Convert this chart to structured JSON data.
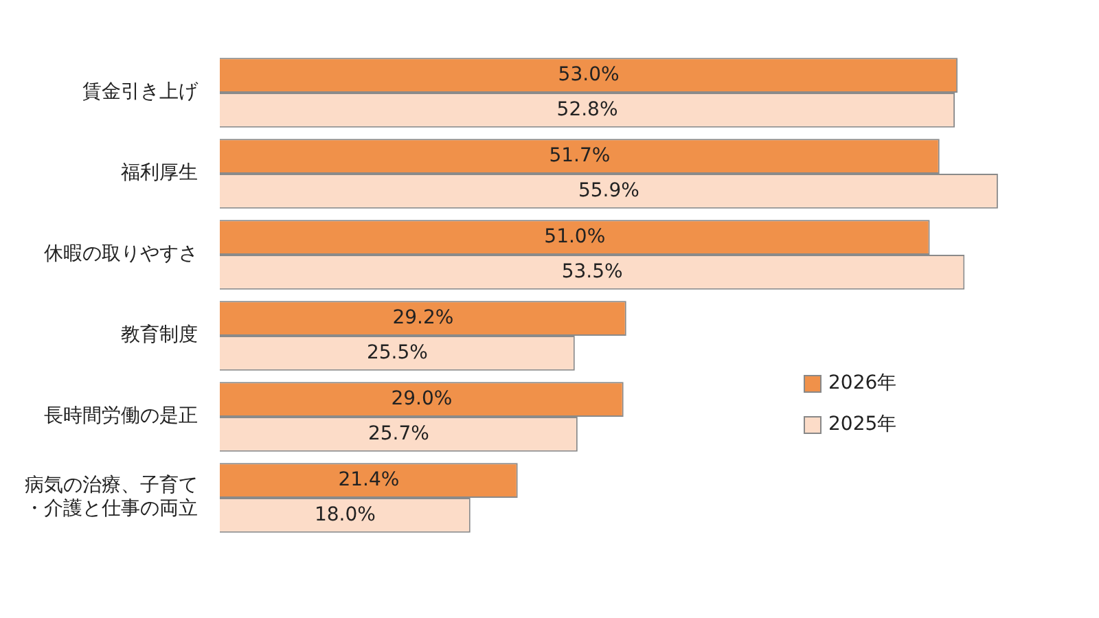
{
  "chart_data": {
    "type": "bar",
    "orientation": "horizontal",
    "categories": [
      "賃金引き上げ",
      "福利厚生",
      "休暇の取りやすさ",
      "教育制度",
      "長時間労働の是正",
      "病気の治療、子育て・介護と仕事の両立"
    ],
    "series": [
      {
        "name": "2026年",
        "color": "#f0914a",
        "values": [
          53.0,
          51.7,
          51.0,
          29.2,
          29.0,
          21.4
        ],
        "value_labels": [
          "53.0%",
          "51.7%",
          "51.0%",
          "29.2%",
          "29.0%",
          "21.4%"
        ]
      },
      {
        "name": "2025年",
        "color": "#fcdcc8",
        "values": [
          52.8,
          55.9,
          53.5,
          25.5,
          25.7,
          18.0
        ],
        "value_labels": [
          "52.8%",
          "55.9%",
          "53.5%",
          "25.5%",
          "25.7%",
          "18.0%"
        ]
      }
    ],
    "legend": "right"
  }
}
